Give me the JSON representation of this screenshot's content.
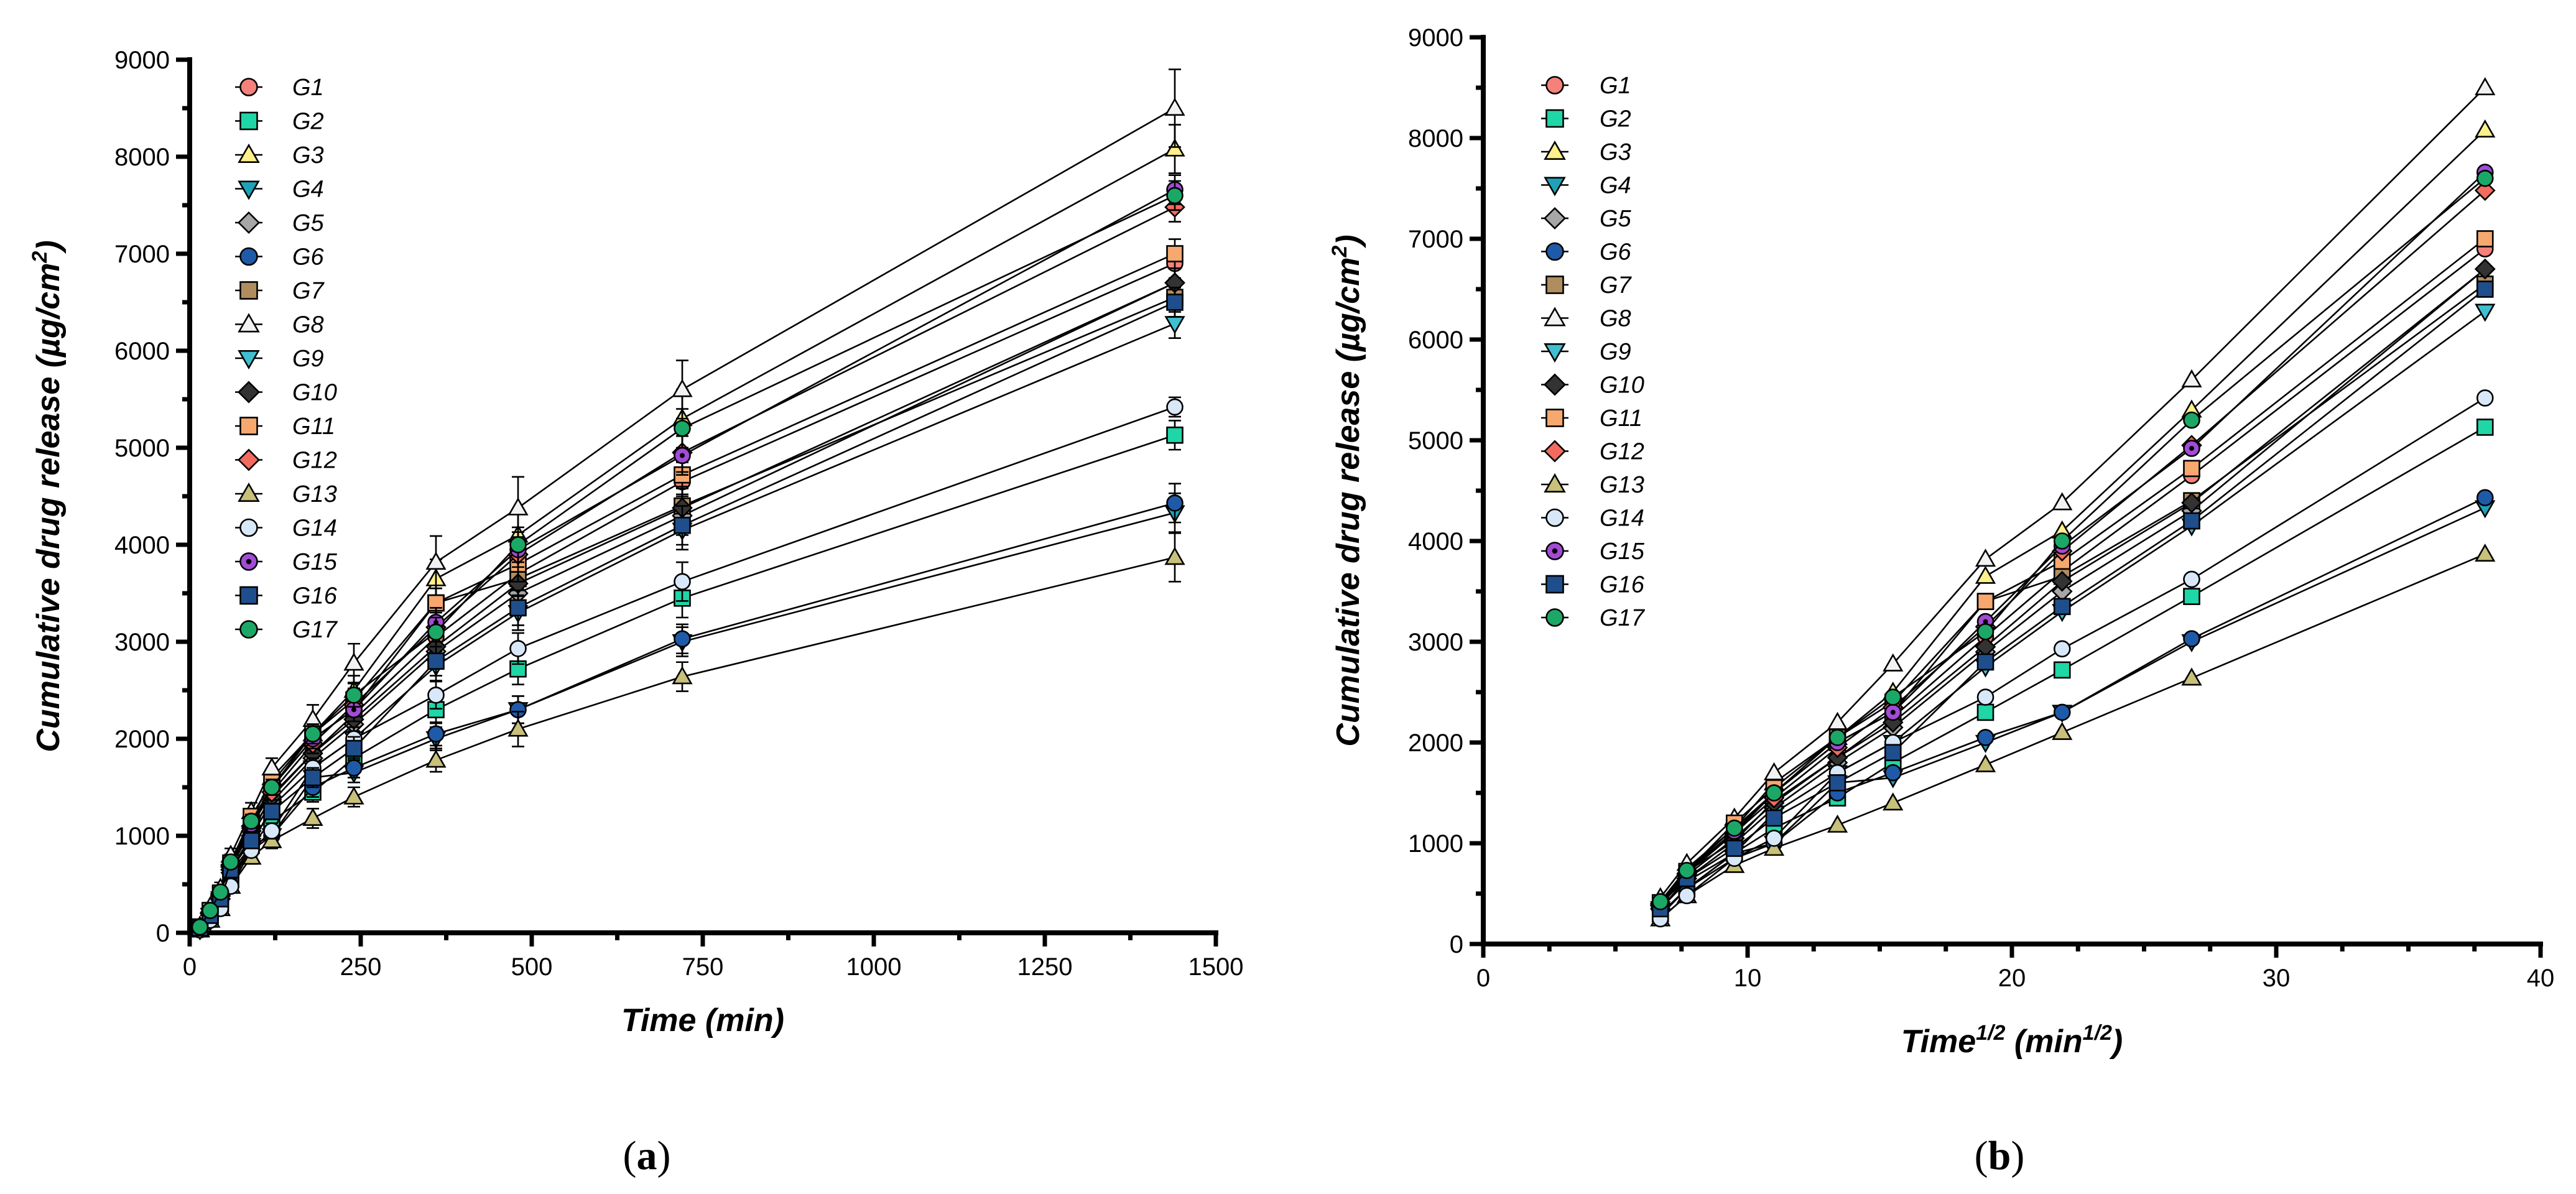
{
  "chart_data": [
    {
      "type": "line",
      "panel_label": "(a)",
      "xlabel": "Time (min)",
      "ylabel_main": "Cumulative drug release (µg/cm",
      "ylabel_sup": "2",
      "ylabel_end": ")",
      "xlim": [
        0,
        1500
      ],
      "ylim": [
        0,
        9000
      ],
      "xticks": [
        0,
        250,
        500,
        750,
        1000,
        1250,
        1500
      ],
      "xtick_labels": [
        "0",
        "250",
        "500",
        "750",
        "1000",
        "1250",
        "1500"
      ],
      "yticks": [
        0,
        1000,
        2000,
        3000,
        4000,
        5000,
        6000,
        7000,
        8000,
        9000
      ],
      "ytick_labels": [
        "0",
        "1000",
        "2000",
        "3000",
        "4000",
        "5000",
        "6000",
        "7000",
        "8000",
        "9000"
      ],
      "legend_position": "top-left",
      "x": [
        15,
        30,
        45,
        60,
        90,
        120,
        180,
        240,
        360,
        480,
        720,
        1440
      ],
      "error_bars": true
    },
    {
      "type": "line",
      "panel_label": "(b)",
      "xlabel_main": "Time",
      "xlabel_sup1": "1/2",
      "xlabel_mid": " (min",
      "xlabel_sup2": "1/2",
      "xlabel_end": ")",
      "ylabel_main": "Cumulative drug release (µg/cm",
      "ylabel_sup": "2",
      "ylabel_end": ")",
      "xlim": [
        0,
        40
      ],
      "ylim": [
        0,
        9000
      ],
      "xticks": [
        0,
        10,
        20,
        30,
        40
      ],
      "xtick_labels": [
        "0",
        "10",
        "20",
        "30",
        "40"
      ],
      "yticks": [
        0,
        1000,
        2000,
        3000,
        4000,
        5000,
        6000,
        7000,
        8000,
        9000
      ],
      "ytick_labels": [
        "0",
        "1000",
        "2000",
        "3000",
        "4000",
        "5000",
        "6000",
        "7000",
        "8000",
        "9000"
      ],
      "legend_position": "top-left",
      "x": [
        6.7,
        7.7,
        9.5,
        11.0,
        13.4,
        15.5,
        19.0,
        21.9,
        26.8,
        37.9
      ],
      "point_index": [
        2,
        3,
        4,
        5,
        6,
        7,
        8,
        9,
        10,
        11
      ],
      "error_bars": false
    }
  ],
  "series": [
    {
      "name": "G1",
      "marker": "circle",
      "color": "#F4827A",
      "values": [
        50,
        200,
        380,
        720,
        1020,
        1420,
        1850,
        2250,
        3050,
        3700,
        4650,
        6900
      ],
      "errors": [
        20,
        40,
        50,
        60,
        70,
        80,
        100,
        120,
        150,
        180,
        200,
        150
      ]
    },
    {
      "name": "G2",
      "marker": "square",
      "color": "#1FD6A6",
      "values": [
        40,
        150,
        300,
        550,
        900,
        1150,
        1450,
        1800,
        2300,
        2720,
        3450,
        5130
      ],
      "errors": [
        20,
        40,
        50,
        60,
        70,
        80,
        100,
        120,
        140,
        160,
        200,
        150
      ]
    },
    {
      "name": "G3",
      "marker": "triangle",
      "color": "#FFF08A",
      "values": [
        60,
        250,
        420,
        750,
        1150,
        1600,
        2050,
        2500,
        3650,
        4100,
        5300,
        8080
      ],
      "errors": [
        20,
        40,
        50,
        60,
        80,
        90,
        120,
        150,
        200,
        250,
        300,
        250
      ]
    },
    {
      "name": "G4",
      "marker": "tri-down",
      "color": "#1FA2B8",
      "values": [
        30,
        120,
        280,
        550,
        850,
        1000,
        1600,
        1650,
        2000,
        2300,
        3000,
        4330
      ],
      "errors": [
        20,
        40,
        50,
        60,
        70,
        80,
        100,
        100,
        120,
        140,
        150,
        200
      ]
    },
    {
      "name": "G5",
      "marker": "diamond",
      "color": "#A6A6A6",
      "values": [
        50,
        200,
        400,
        650,
        1000,
        1350,
        1800,
        2150,
        2900,
        3500,
        4300,
        6700
      ],
      "errors": [
        20,
        40,
        50,
        60,
        70,
        80,
        100,
        120,
        150,
        180,
        200,
        150
      ]
    },
    {
      "name": "G6",
      "marker": "circle",
      "color": "#1F5AA8",
      "values": [
        40,
        150,
        300,
        550,
        900,
        1000,
        1500,
        1700,
        2050,
        2300,
        3030,
        4430
      ],
      "errors": [
        20,
        40,
        50,
        60,
        70,
        80,
        100,
        100,
        120,
        140,
        150,
        200
      ]
    },
    {
      "name": "G7",
      "marker": "square",
      "color": "#B08D5E",
      "values": [
        60,
        220,
        400,
        700,
        1100,
        1500,
        2000,
        2300,
        3400,
        3650,
        4400,
        6550
      ],
      "errors": [
        20,
        40,
        50,
        60,
        70,
        80,
        100,
        120,
        150,
        180,
        200,
        150
      ]
    },
    {
      "name": "G8",
      "marker": "triangle",
      "color": "#F2F2F2",
      "values": [
        70,
        270,
        460,
        800,
        1250,
        1700,
        2200,
        2780,
        3820,
        4380,
        5600,
        8500
      ],
      "errors": [
        20,
        40,
        60,
        70,
        90,
        100,
        150,
        200,
        270,
        320,
        300,
        400
      ]
    },
    {
      "name": "G9",
      "marker": "tri-down",
      "color": "#3FBFD0",
      "values": [
        50,
        180,
        350,
        620,
        900,
        1300,
        1700,
        2000,
        2750,
        3300,
        4150,
        6280
      ],
      "errors": [
        20,
        40,
        50,
        60,
        70,
        80,
        100,
        120,
        150,
        180,
        200,
        150
      ]
    },
    {
      "name": "G10",
      "marker": "diamond",
      "color": "#333333",
      "values": [
        50,
        200,
        380,
        680,
        1050,
        1400,
        1850,
        2200,
        2950,
        3600,
        4380,
        6700
      ],
      "errors": [
        20,
        40,
        50,
        60,
        70,
        80,
        100,
        120,
        150,
        180,
        200,
        150
      ]
    },
    {
      "name": "G11",
      "marker": "square",
      "color": "#F7A86E",
      "values": [
        60,
        230,
        410,
        720,
        1200,
        1550,
        2050,
        2400,
        3400,
        3800,
        4720,
        7000
      ],
      "errors": [
        20,
        40,
        50,
        60,
        70,
        80,
        100,
        120,
        150,
        180,
        200,
        150
      ]
    },
    {
      "name": "G12",
      "marker": "diamond",
      "color": "#F26B5E",
      "values": [
        60,
        210,
        400,
        700,
        1100,
        1450,
        1950,
        2350,
        3150,
        3900,
        4950,
        7480
      ],
      "errors": [
        20,
        40,
        50,
        60,
        70,
        80,
        100,
        120,
        150,
        180,
        200,
        150
      ]
    },
    {
      "name": "G13",
      "marker": "triangle",
      "color": "#C9C07A",
      "values": [
        30,
        130,
        250,
        480,
        780,
        950,
        1180,
        1400,
        1780,
        2100,
        2640,
        3870
      ],
      "errors": [
        20,
        40,
        50,
        60,
        70,
        80,
        100,
        100,
        120,
        180,
        150,
        250
      ]
    },
    {
      "name": "G14",
      "marker": "circle",
      "color": "#D8E8F8",
      "values": [
        30,
        130,
        250,
        480,
        850,
        1050,
        1700,
        2000,
        2450,
        2930,
        3620,
        5420
      ],
      "errors": [
        20,
        40,
        50,
        60,
        70,
        80,
        100,
        120,
        140,
        160,
        200,
        100
      ]
    },
    {
      "name": "G15",
      "marker": "circle-dot",
      "color": "#A24BD6",
      "values": [
        60,
        220,
        410,
        720,
        1120,
        1500,
        2000,
        2300,
        3200,
        3950,
        4920,
        7660
      ],
      "errors": [
        20,
        40,
        50,
        60,
        70,
        80,
        100,
        120,
        150,
        180,
        200,
        150
      ]
    },
    {
      "name": "G16",
      "marker": "square",
      "color": "#1F4E8C",
      "values": [
        50,
        180,
        350,
        650,
        950,
        1250,
        1600,
        1900,
        2800,
        3350,
        4200,
        6500
      ],
      "errors": [
        20,
        40,
        50,
        60,
        70,
        80,
        100,
        120,
        150,
        180,
        200,
        150
      ]
    },
    {
      "name": "G17",
      "marker": "circle",
      "color": "#1BA866",
      "values": [
        60,
        230,
        420,
        730,
        1150,
        1500,
        2050,
        2450,
        3100,
        4000,
        5200,
        7600
      ],
      "errors": [
        20,
        40,
        50,
        60,
        70,
        80,
        100,
        120,
        150,
        180,
        200,
        150
      ]
    }
  ]
}
